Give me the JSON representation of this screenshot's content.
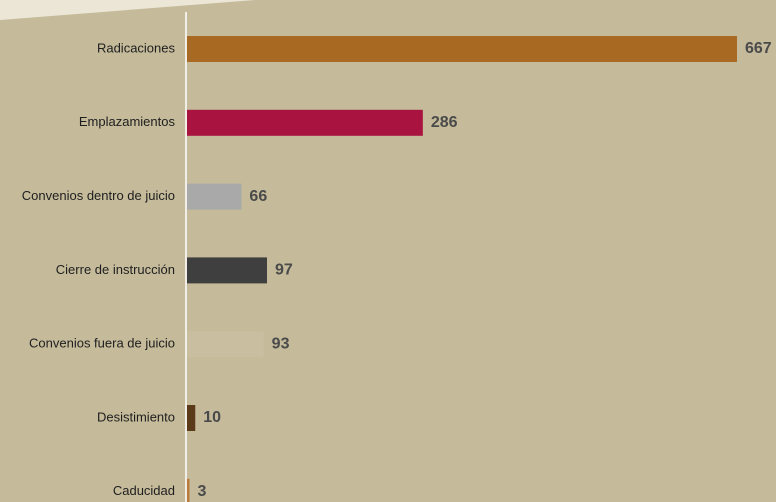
{
  "chart_data": {
    "type": "bar",
    "orientation": "horizontal",
    "categories": [
      "Radicaciones",
      "Emplazamientos",
      "Convenios dentro de juicio",
      "Cierre de instrucción",
      "Convenios fuera de juicio",
      "Desistimiento",
      "Caducidad"
    ],
    "values": [
      667,
      286,
      66,
      97,
      93,
      10,
      3
    ],
    "colors": [
      "#a86a22",
      "#a8143f",
      "#a9a9a9",
      "#3f3f3f",
      "#c9be9f",
      "#5a3a18",
      "#b97a3a"
    ],
    "background": "#c5bb9b",
    "xlim": [
      0,
      667
    ],
    "grid": false,
    "legend": "none"
  }
}
